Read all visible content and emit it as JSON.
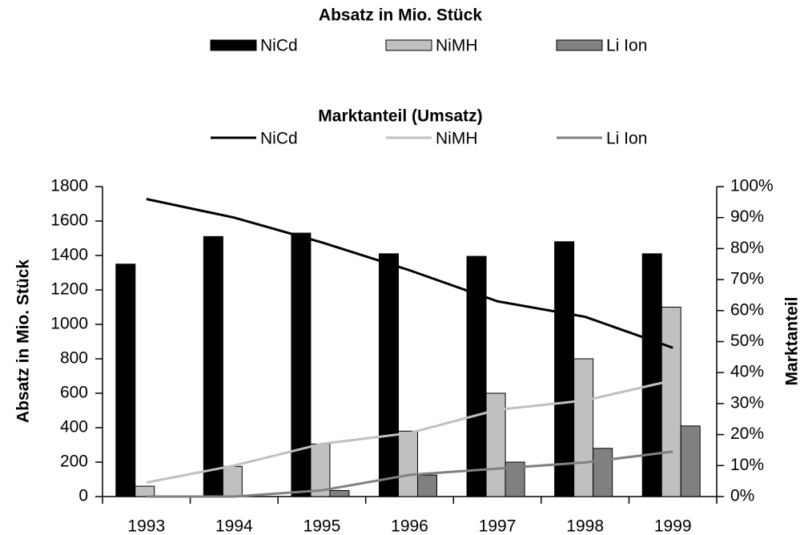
{
  "chart_data": {
    "type": "bar_line",
    "bar_legend_title": "Absatz in Mio. Stück",
    "line_legend_title": "Marktanteil (Umsatz)",
    "y_label": "Absatz in Mio. Stück",
    "y2_label": "Marktanteil",
    "categories": [
      "1993",
      "1994",
      "1995",
      "1996",
      "1997",
      "1998",
      "1999"
    ],
    "series": [
      {
        "name": "NiCd",
        "type": "bar",
        "color": "#000000",
        "values": [
          1350,
          1510,
          1530,
          1410,
          1395,
          1480,
          1410
        ]
      },
      {
        "name": "NiMH",
        "type": "bar",
        "color": "#c0c0c0",
        "values": [
          60,
          175,
          305,
          380,
          600,
          800,
          1100
        ]
      },
      {
        "name": "Li Ion",
        "type": "bar",
        "color": "#808080",
        "values": [
          0,
          0,
          35,
          125,
          200,
          280,
          410
        ]
      },
      {
        "name": "NiCd",
        "type": "line",
        "axis": "y2",
        "color": "#000000",
        "values": [
          96,
          90,
          82,
          73,
          63,
          58,
          48
        ]
      },
      {
        "name": "NiMH",
        "type": "line",
        "axis": "y2",
        "color": "#c0c0c0",
        "values": [
          4.5,
          10,
          17,
          20.5,
          28,
          31,
          37.5
        ]
      },
      {
        "name": "Li Ion",
        "type": "line",
        "axis": "y2",
        "color": "#808080",
        "values": [
          0,
          0,
          2,
          7,
          9,
          11,
          14.5
        ]
      }
    ],
    "ylim": [
      0,
      1800
    ],
    "yticks": [
      0,
      200,
      400,
      600,
      800,
      1000,
      1200,
      1400,
      1600,
      1800
    ],
    "y2lim": [
      0,
      100
    ],
    "y2ticks": [
      {
        "value": 0,
        "label": "0%"
      },
      {
        "value": 10,
        "label": "10%"
      },
      {
        "value": 20,
        "label": "20%"
      },
      {
        "value": 30,
        "label": "30%"
      },
      {
        "value": 40,
        "label": "40%"
      },
      {
        "value": 50,
        "label": "50%"
      },
      {
        "value": 60,
        "label": "60%"
      },
      {
        "value": 70,
        "label": "70%"
      },
      {
        "value": 80,
        "label": "80%"
      },
      {
        "value": 90,
        "label": "90%"
      },
      {
        "value": 100,
        "label": "100%"
      }
    ],
    "grid": false
  }
}
